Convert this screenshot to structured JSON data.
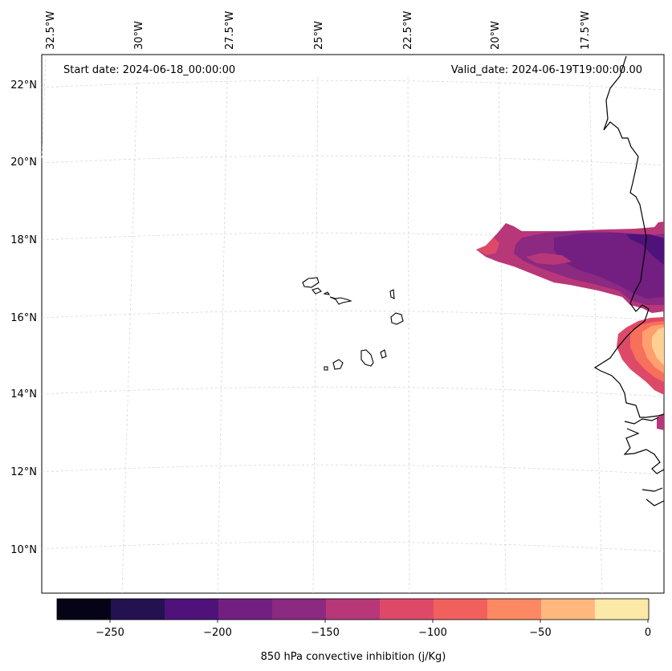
{
  "header": {
    "start_date": "Start date: 2024-06-18_00:00:00",
    "valid_date": "Valid_date: 2024-06-19T19:00:00.00"
  },
  "map": {
    "lon_labels": [
      "32.5°W",
      "30°W",
      "27.5°W",
      "25°W",
      "22.5°W",
      "20°W",
      "17.5°W"
    ],
    "lat_labels": [
      "22°N",
      "20°N",
      "18°N",
      "16°N",
      "14°N",
      "12°N",
      "10°N"
    ],
    "gridlines": true,
    "field_colors": {
      "cin_-175_-150": "#8c2981",
      "cin_-150_-125": "#b73779",
      "cin_-125_-100": "#de4968",
      "cin_-100_-75": "#f7705c",
      "cin_-75_-50": "#fe9f6d",
      "cin_-50_-25": "#fecf92",
      "cin_-200_-175": "#721f81"
    }
  },
  "colorbar": {
    "label": "850 hPa convective inhibition (j/Kg)",
    "tick_labels": [
      "−250",
      "−200",
      "−150",
      "−100",
      "−50",
      "0"
    ],
    "colors": [
      "#050416",
      "#231151",
      "#4f127b",
      "#721f81",
      "#8c2981",
      "#b73779",
      "#de4968",
      "#f1605d",
      "#fc8961",
      "#feb87e",
      "#fde9a7"
    ]
  }
}
